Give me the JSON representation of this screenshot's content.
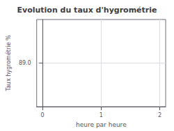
{
  "chart_data": {
    "type": "line",
    "title": "Evolution du taux d'hygrométrie",
    "xlabel": "heure par heure",
    "ylabel": "Taux hygrométrie %",
    "xlim": [
      -0.1,
      2.1
    ],
    "xticks": [
      0,
      1,
      2
    ],
    "ylim": [
      88.95,
      89.05
    ],
    "yticks": [
      {
        "value": 89.0,
        "label": "89.0"
      }
    ],
    "grid": true
  }
}
